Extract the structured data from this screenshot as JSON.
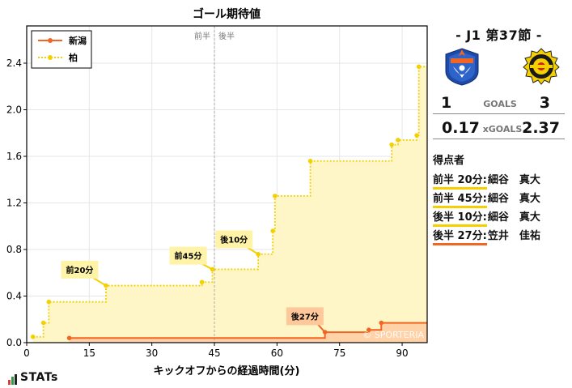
{
  "chart_data": {
    "type": "line",
    "title": "ゴール期待値",
    "xlabel": "キックオフからの経過時間(分)",
    "ylabel": "",
    "xlim": [
      0,
      96
    ],
    "ylim": [
      0,
      2.72
    ],
    "x_ticks": [
      0,
      15,
      30,
      45,
      60,
      75,
      90
    ],
    "y_ticks": [
      0.0,
      0.4,
      0.8,
      1.2,
      1.6,
      2.0,
      2.4
    ],
    "x_tick_labels": [
      "0",
      "15",
      "30",
      "45",
      "60",
      "75",
      "90"
    ],
    "y_tick_labels": [
      "0.0",
      "0.4",
      "0.8",
      "1.2",
      "1.6",
      "2.0",
      "2.4"
    ],
    "grid": true,
    "legend_position": "top-left",
    "half_labels": {
      "first": "前半",
      "second": "後半",
      "divider_x": 45
    },
    "watermark": "© SPORTERIA",
    "series": [
      {
        "name": "新潟",
        "color": "#f26522",
        "fill": "#ffd2a8",
        "style": "solid",
        "x": [
          10.2,
          71.5,
          82,
          85,
          96
        ],
        "y": [
          0.04,
          0.09,
          0.11,
          0.17,
          0.17
        ]
      },
      {
        "name": "柏",
        "color": "#f5d000",
        "fill": "#fff6c8",
        "style": "dotted",
        "x": [
          1.5,
          4,
          5.3,
          19,
          42,
          44.5,
          55.5,
          59,
          59.5,
          68,
          87.5,
          89,
          93.5,
          94,
          96
        ],
        "y": [
          0.05,
          0.17,
          0.35,
          0.49,
          0.52,
          0.63,
          0.76,
          0.96,
          1.26,
          1.56,
          1.7,
          1.74,
          1.78,
          2.37,
          2.37
        ]
      }
    ],
    "annotations": [
      {
        "label": "前20分",
        "series": "柏",
        "x": 19,
        "y": 0.49,
        "box_x": 12.5,
        "box_y": 0.62,
        "color": "#fff3a8"
      },
      {
        "label": "前45分",
        "series": "柏",
        "x": 44.5,
        "y": 0.63,
        "box_x": 38.5,
        "box_y": 0.74,
        "color": "#fff3a8"
      },
      {
        "label": "後10分",
        "series": "柏",
        "x": 55.5,
        "y": 0.76,
        "box_x": 49.5,
        "box_y": 0.88,
        "color": "#fff3a8"
      },
      {
        "label": "後27分",
        "series": "新潟",
        "x": 71.5,
        "y": 0.09,
        "box_x": 66.5,
        "box_y": 0.22,
        "color": "#ffc89a"
      }
    ]
  },
  "legend": {
    "home": "新潟",
    "away": "柏"
  },
  "match": {
    "title": "-  J1 第37節  -",
    "goals_label": "GOALS",
    "xgoals_label": "xGOALS",
    "home_goals": "1",
    "away_goals": "3",
    "home_xg": "0.17",
    "away_xg": "2.37"
  },
  "scorers": {
    "heading": "得点者",
    "list": [
      {
        "time": "前半 20分:",
        "name": "細谷　真大",
        "team": "away"
      },
      {
        "time": "前半 45分:",
        "name": "細谷　真大",
        "team": "away"
      },
      {
        "time": "後半 10分:",
        "name": "細谷　真大",
        "team": "away"
      },
      {
        "time": "後半 27分:",
        "name": "笠井　佳祐",
        "team": "home"
      }
    ]
  },
  "brand": {
    "name": "STATs"
  },
  "colors": {
    "home": "#f26522",
    "away": "#f5d000"
  },
  "icons": {
    "home_crest": "albirex-niigata-crest-icon",
    "away_crest": "kashiwa-reysol-crest-icon"
  }
}
